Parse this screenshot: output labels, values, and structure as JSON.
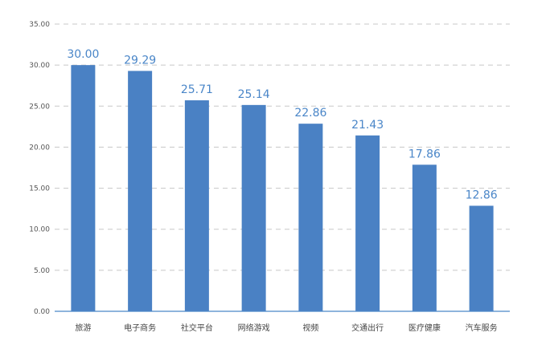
{
  "chart_data": {
    "type": "bar",
    "categories": [
      "旅游",
      "电子商务",
      "社交平台",
      "网络游戏",
      "视频",
      "交通出行",
      "医疗健康",
      "汽车服务"
    ],
    "values": [
      30.0,
      29.29,
      25.71,
      25.14,
      22.86,
      21.43,
      17.86,
      12.86
    ],
    "data_labels": [
      "30.00",
      "29.29",
      "25.71",
      "25.14",
      "22.86",
      "21.43",
      "17.86",
      "12.86"
    ],
    "y_ticks": [
      "0.00",
      "5.00",
      "10.00",
      "15.00",
      "20.00",
      "25.00",
      "30.00",
      "35.00"
    ],
    "ylim": [
      0,
      35
    ],
    "grid": true,
    "legend": "none",
    "bar_color": "#4a81c4",
    "label_color": "#4a86c8"
  }
}
